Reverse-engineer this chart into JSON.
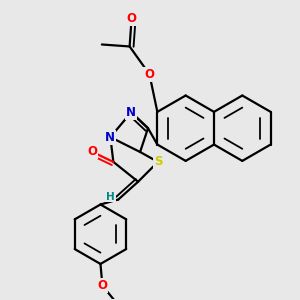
{
  "background_color": "#e8e8e8",
  "bond_color": "#000000",
  "bond_width": 1.6,
  "atom_colors": {
    "O": "#ff0000",
    "N": "#0000cc",
    "S": "#cccc00",
    "H": "#008888",
    "C": "#000000"
  },
  "font_size_atom": 8.5
}
